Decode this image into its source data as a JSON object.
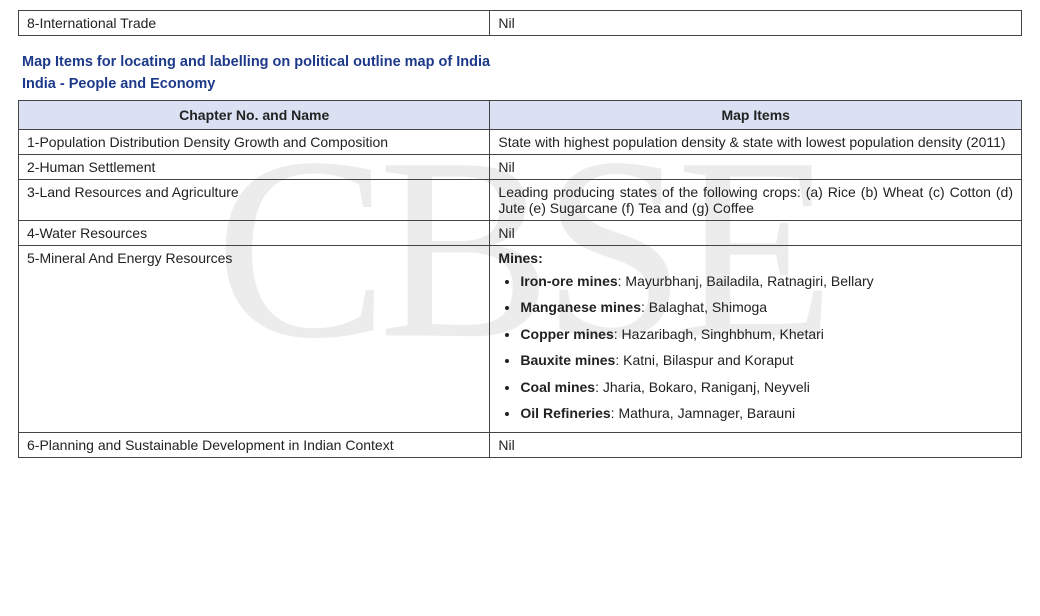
{
  "watermark": "CBSE",
  "topTable": {
    "rows": [
      {
        "chapter": "8-International Trade",
        "items": "Nil"
      }
    ]
  },
  "section": {
    "title": "Map Items for locating and labelling on political outline map of India",
    "subtitle": "India - People and Economy"
  },
  "mainTable": {
    "headers": {
      "left": "Chapter No. and Name",
      "right": "Map Items"
    },
    "rows": [
      {
        "chapter": "1-Population Distribution  Density Growth and Composition",
        "type": "text",
        "items": "State with highest population density & state with lowest population density (2011)"
      },
      {
        "chapter": "2-Human Settlement",
        "type": "text",
        "items": "Nil"
      },
      {
        "chapter": "3-Land Resources and Agriculture",
        "type": "text",
        "items": "Leading producing states of the following crops: (a) Rice (b) Wheat (c) Cotton (d) Jute (e) Sugarcane (f) Tea and (g) Coffee"
      },
      {
        "chapter": "4-Water Resources",
        "type": "text",
        "items": "Nil"
      },
      {
        "chapter": "5-Mineral And Energy Resources",
        "type": "mines",
        "heading": "Mines:",
        "list": [
          {
            "label": "Iron-ore mines",
            "value": ": Mayurbhanj, Bailadila, Ratnagiri, Bellary"
          },
          {
            "label": "Manganese mines",
            "value": ": Balaghat, Shimoga"
          },
          {
            "label": "Copper mines",
            "value": ": Hazaribagh, Singhbhum, Khetari"
          },
          {
            "label": "Bauxite mines",
            "value": ": Katni, Bilaspur and Koraput"
          },
          {
            "label": "Coal mines",
            "value": ": Jharia, Bokaro, Raniganj, Neyveli"
          },
          {
            "label": "Oil Refineries",
            "value": ": Mathura, Jamnager, Barauni"
          }
        ]
      },
      {
        "chapter": "6-Planning and Sustainable Development in Indian Context",
        "type": "text",
        "items": "Nil"
      }
    ]
  },
  "colors": {
    "header_bg": "#d9e1f2",
    "border": "#444444",
    "title": "#1d3a8a",
    "text": "#222222",
    "watermark": "rgba(180,180,180,0.25)"
  }
}
